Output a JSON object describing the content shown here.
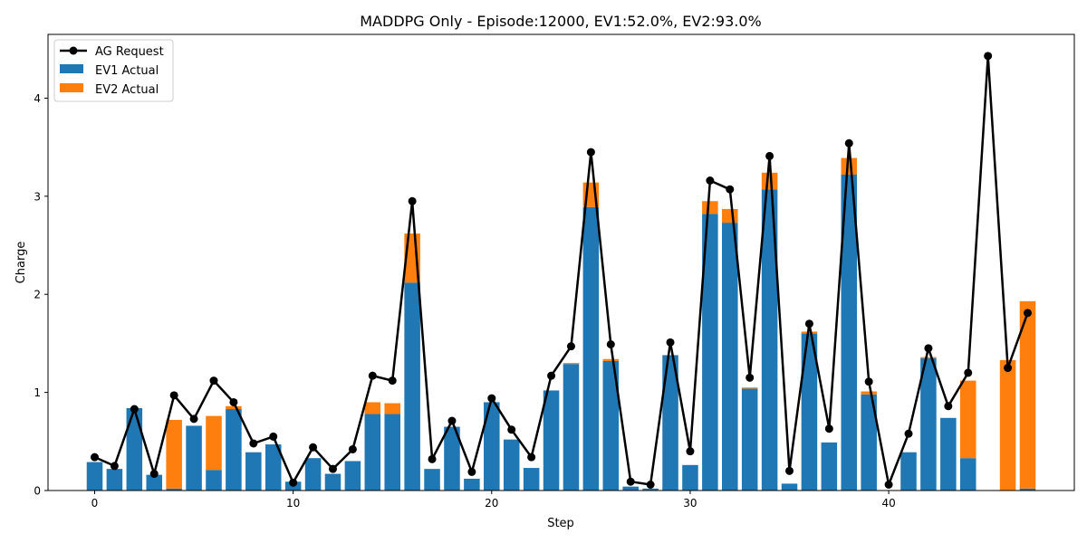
{
  "chart_data": {
    "type": "bar",
    "title": "MADDPG Only - Episode:12000, EV1:52.0%, EV2:93.0%",
    "xlabel": "Step",
    "ylabel": "Charge",
    "xlim": [
      -2.35,
      49.35
    ],
    "ylim": [
      0,
      4.65
    ],
    "xticks": [
      0,
      10,
      20,
      30,
      40
    ],
    "yticks": [
      0,
      1,
      2,
      3,
      4
    ],
    "legend_position": "upper-left",
    "grid": false,
    "x": [
      0,
      1,
      2,
      3,
      4,
      5,
      6,
      7,
      8,
      9,
      10,
      11,
      12,
      13,
      14,
      15,
      16,
      17,
      18,
      19,
      20,
      21,
      22,
      23,
      24,
      25,
      26,
      27,
      28,
      29,
      30,
      31,
      32,
      33,
      34,
      35,
      36,
      37,
      38,
      39,
      40,
      41,
      42,
      43,
      44,
      45,
      46,
      47
    ],
    "series": [
      {
        "name": "AG Request",
        "type": "line",
        "color": "#000000",
        "values": [
          0.34,
          0.25,
          0.83,
          0.17,
          0.97,
          0.73,
          1.12,
          0.9,
          0.48,
          0.55,
          0.08,
          0.44,
          0.22,
          0.42,
          1.17,
          1.12,
          2.95,
          0.32,
          0.71,
          0.19,
          0.94,
          0.62,
          0.34,
          1.17,
          1.47,
          3.45,
          1.49,
          0.09,
          0.06,
          1.51,
          0.4,
          3.16,
          3.07,
          1.15,
          3.41,
          0.2,
          1.7,
          0.63,
          3.54,
          1.11,
          0.06,
          0.58,
          1.45,
          0.86,
          1.2,
          4.43,
          1.25,
          1.81
        ]
      },
      {
        "name": "EV1 Actual",
        "type": "bar",
        "color": "#1f77b4",
        "values": [
          0.29,
          0.22,
          0.84,
          0.16,
          0.02,
          0.66,
          0.21,
          0.83,
          0.39,
          0.47,
          0.09,
          0.33,
          0.17,
          0.3,
          0.78,
          0.78,
          2.12,
          0.22,
          0.65,
          0.12,
          0.9,
          0.52,
          0.23,
          1.02,
          1.29,
          2.89,
          1.32,
          0.04,
          0.02,
          1.38,
          0.26,
          2.82,
          2.73,
          1.04,
          3.07,
          0.07,
          1.6,
          0.49,
          3.22,
          0.98,
          0.0,
          0.39,
          1.35,
          0.74,
          0.33,
          0.0,
          0.0,
          0.02
        ]
      },
      {
        "name": "EV2 Actual",
        "type": "bar",
        "color": "#ff7f0e",
        "values": [
          0.0,
          0.0,
          0.0,
          0.0,
          0.7,
          0.0,
          0.55,
          0.03,
          0.0,
          0.0,
          0.0,
          0.0,
          0.0,
          0.0,
          0.12,
          0.11,
          0.5,
          0.0,
          0.0,
          0.0,
          0.0,
          0.0,
          0.0,
          0.0,
          0.01,
          0.25,
          0.02,
          0.0,
          0.0,
          0.0,
          0.0,
          0.13,
          0.14,
          0.01,
          0.17,
          0.0,
          0.02,
          0.0,
          0.17,
          0.03,
          0.0,
          0.0,
          0.01,
          0.0,
          0.79,
          0.0,
          1.33,
          1.91
        ]
      }
    ]
  }
}
